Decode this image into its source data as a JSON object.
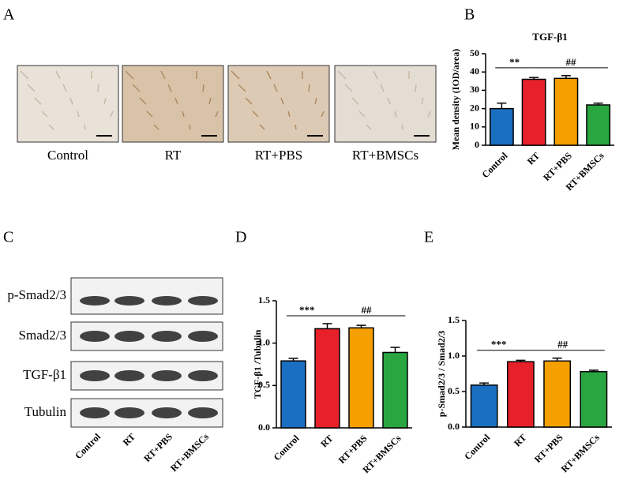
{
  "panel_a": {
    "letter": "A",
    "labels": [
      "Control",
      "RT",
      "RT+PBS",
      "RT+BMSCs"
    ]
  },
  "panel_c": {
    "letter": "C",
    "bands": [
      "p-Smad2/3",
      "Smad2/3",
      "TGF-β1",
      "Tubulin"
    ],
    "lanes": [
      "Control",
      "RT",
      "RT+PBS",
      "RT+BMSCs"
    ]
  },
  "chart_data": [
    {
      "type": "bar",
      "letter": "B",
      "title": "TGF-β1",
      "y_label": "Mean density (IOD/area)",
      "categories": [
        "Control",
        "RT",
        "RT+PBS",
        "RT+BMSCs"
      ],
      "values": [
        20,
        36,
        36.5,
        22
      ],
      "errors": [
        3,
        1,
        1.5,
        1
      ],
      "colors": [
        "#1b6fc0",
        "#e8202a",
        "#f5a000",
        "#2aa640"
      ],
      "ylim": [
        0,
        50
      ],
      "yticks": [
        0,
        10,
        20,
        30,
        40,
        50
      ],
      "annotations": [
        "**",
        "##"
      ]
    },
    {
      "type": "bar",
      "letter": "D",
      "y_label": "TGF-β1 /Tubulin",
      "categories": [
        "Control",
        "RT",
        "RT+PBS",
        "RT+BMSCs"
      ],
      "values": [
        0.79,
        1.17,
        1.18,
        0.89
      ],
      "errors": [
        0.03,
        0.06,
        0.03,
        0.06
      ],
      "colors": [
        "#1b6fc0",
        "#e8202a",
        "#f5a000",
        "#2aa640"
      ],
      "ylim": [
        0,
        1.5
      ],
      "yticks": [
        {
          "value": 0,
          "label": "0.0"
        },
        {
          "value": 0.5,
          "label": "0.5"
        },
        {
          "value": 1,
          "label": "1.0"
        },
        {
          "value": 1.5,
          "label": "1.5"
        }
      ],
      "annotations": [
        "***",
        "##"
      ]
    },
    {
      "type": "bar",
      "letter": "E",
      "y_label": "p-Smad2/3 / Smad2/3",
      "categories": [
        "Control",
        "RT",
        "RT+PBS",
        "RT+BMSCs"
      ],
      "values": [
        0.59,
        0.92,
        0.93,
        0.78
      ],
      "errors": [
        0.03,
        0.02,
        0.04,
        0.02
      ],
      "colors": [
        "#1b6fc0",
        "#e8202a",
        "#f5a000",
        "#2aa640"
      ],
      "ylim": [
        0,
        1.5
      ],
      "yticks": [
        {
          "value": 0,
          "label": "0.0"
        },
        {
          "value": 0.5,
          "label": "0.5"
        },
        {
          "value": 1,
          "label": "1.0"
        },
        {
          "value": 1.5,
          "label": "1.5"
        }
      ],
      "annotations": [
        "***",
        "##"
      ]
    }
  ]
}
